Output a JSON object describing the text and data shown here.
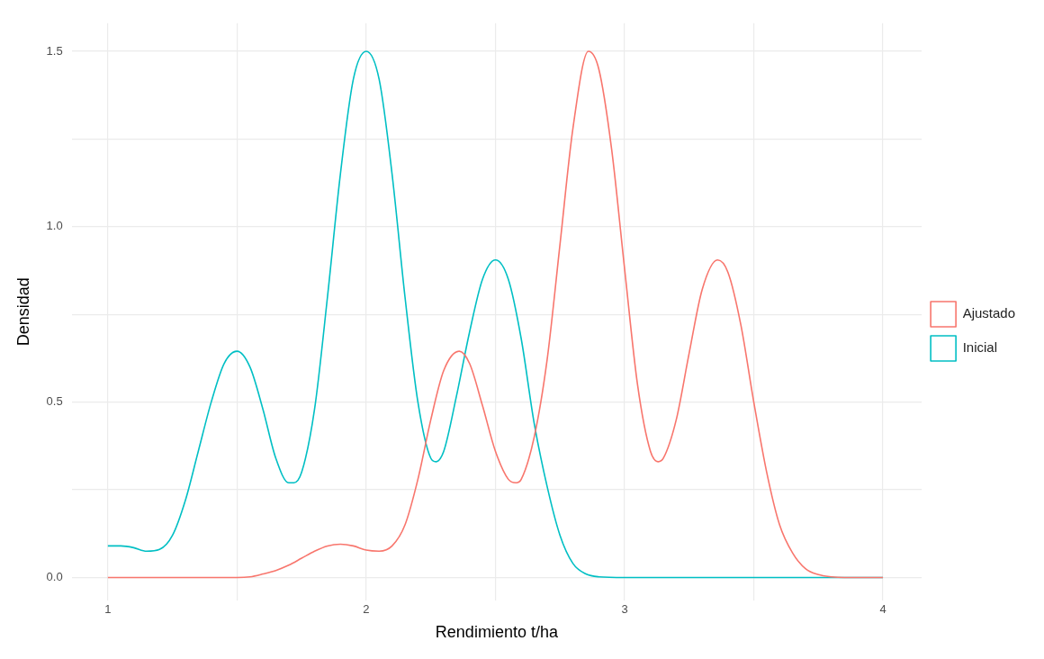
{
  "chart_data": {
    "type": "line",
    "xlabel": "Rendimiento t/ha",
    "ylabel": "Densidad",
    "xlim": [
      0.86,
      4.15
    ],
    "ylim": [
      -0.065,
      1.58
    ],
    "xticks": [
      1,
      {
        "value": 1.5,
        "label": null
      },
      2,
      {
        "value": 2.5,
        "label": null
      },
      3,
      {
        "value": 3.5,
        "label": null
      },
      4
    ],
    "yticks": [
      {
        "value": 0,
        "label": "0.0"
      },
      {
        "value": 0.25,
        "label": null
      },
      {
        "value": 0.5,
        "label": "0.5"
      },
      {
        "value": 0.75,
        "label": null
      },
      {
        "value": 1,
        "label": "1.0"
      },
      {
        "value": 1.25,
        "label": null
      },
      {
        "value": 1.5,
        "label": "1.5"
      }
    ],
    "grid": true,
    "legend": "right",
    "marker": "none",
    "line_style": "solid",
    "series": [
      {
        "name": "Ajustado",
        "color": "#f8766d",
        "x": [
          1,
          1.5,
          1.55,
          1.6,
          1.65,
          1.7,
          1.75,
          1.8,
          1.85,
          1.9,
          1.95,
          2,
          2.05,
          2.1,
          2.15,
          2.2,
          2.25,
          2.3,
          2.36,
          2.4,
          2.45,
          2.5,
          2.55,
          2.58,
          2.6,
          2.65,
          2.7,
          2.75,
          2.8,
          2.86,
          2.9,
          2.95,
          3,
          3.05,
          3.1,
          3.13,
          3.15,
          3.2,
          3.25,
          3.3,
          3.36,
          3.4,
          3.45,
          3.5,
          3.55,
          3.6,
          3.65,
          3.7,
          3.75,
          3.8,
          3.85,
          4
        ],
        "values": [
          0,
          0,
          0.002,
          0.01,
          0.02,
          0.035,
          0.055,
          0.075,
          0.09,
          0.095,
          0.09,
          0.078,
          0.075,
          0.09,
          0.15,
          0.28,
          0.45,
          0.59,
          0.645,
          0.61,
          0.49,
          0.36,
          0.28,
          0.27,
          0.28,
          0.4,
          0.62,
          0.95,
          1.28,
          1.5,
          1.45,
          1.22,
          0.88,
          0.55,
          0.36,
          0.33,
          0.34,
          0.45,
          0.64,
          0.82,
          0.905,
          0.87,
          0.72,
          0.5,
          0.3,
          0.15,
          0.07,
          0.025,
          0.008,
          0.002,
          0,
          0
        ]
      },
      {
        "name": "Inicial",
        "color": "#00bfc4",
        "x": [
          1,
          1.05,
          1.1,
          1.15,
          1.2,
          1.25,
          1.3,
          1.35,
          1.4,
          1.45,
          1.5,
          1.55,
          1.6,
          1.65,
          1.7,
          1.72,
          1.75,
          1.8,
          1.85,
          1.9,
          1.95,
          2,
          2.05,
          2.1,
          2.15,
          2.2,
          2.25,
          2.27,
          2.3,
          2.35,
          2.4,
          2.45,
          2.5,
          2.55,
          2.6,
          2.65,
          2.7,
          2.75,
          2.8,
          2.85,
          2.9,
          3,
          4
        ],
        "values": [
          0.09,
          0.09,
          0.085,
          0.075,
          0.08,
          0.12,
          0.22,
          0.36,
          0.5,
          0.61,
          0.645,
          0.6,
          0.48,
          0.34,
          0.27,
          0.27,
          0.3,
          0.48,
          0.8,
          1.15,
          1.42,
          1.5,
          1.42,
          1.15,
          0.8,
          0.5,
          0.34,
          0.33,
          0.36,
          0.52,
          0.7,
          0.85,
          0.905,
          0.85,
          0.68,
          0.44,
          0.26,
          0.12,
          0.04,
          0.01,
          0.002,
          0,
          0
        ]
      }
    ]
  }
}
